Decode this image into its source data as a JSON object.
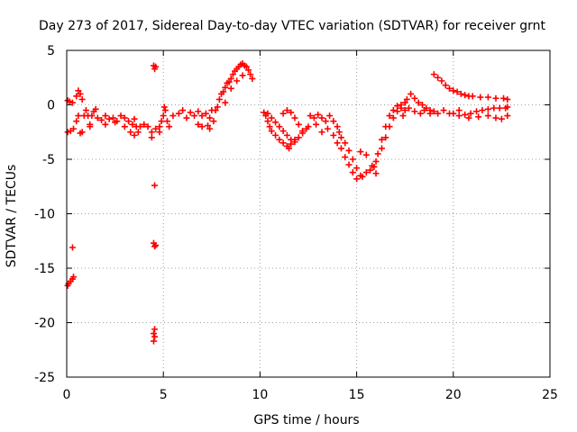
{
  "chart_data": {
    "type": "scatter",
    "title": "Day 273 of 2017, Sidereal Day-to-day VTEC variation (SDTVAR) for receiver grnt",
    "xlabel": "GPS time / hours",
    "ylabel": "SDTVAR / TECUs",
    "xlim": [
      0,
      25
    ],
    "ylim": [
      -25,
      5
    ],
    "xticks": [
      0,
      5,
      10,
      15,
      20,
      25
    ],
    "yticks": [
      5,
      0,
      -5,
      -10,
      -15,
      -20,
      -25
    ],
    "grid": true,
    "marker": "+",
    "series": [
      {
        "name": "SDTVAR",
        "color": "#ff0000",
        "points": [
          [
            0.05,
            -16.6
          ],
          [
            0.1,
            -16.4
          ],
          [
            0.2,
            -16.2
          ],
          [
            0.3,
            -16.0
          ],
          [
            0.35,
            -15.8
          ],
          [
            0.3,
            -13.1
          ],
          [
            0.05,
            0.4
          ],
          [
            0.15,
            0.3
          ],
          [
            0.3,
            0.2
          ],
          [
            0.05,
            -2.5
          ],
          [
            0.2,
            -2.4
          ],
          [
            0.35,
            -2.2
          ],
          [
            0.5,
            0.8
          ],
          [
            0.6,
            1.3
          ],
          [
            0.7,
            1.0
          ],
          [
            0.8,
            0.5
          ],
          [
            0.5,
            -1.5
          ],
          [
            0.6,
            -1.0
          ],
          [
            0.7,
            -2.6
          ],
          [
            0.8,
            -2.5
          ],
          [
            0.9,
            -1.0
          ],
          [
            1.0,
            -0.5
          ],
          [
            1.1,
            -1.0
          ],
          [
            1.2,
            -1.8
          ],
          [
            1.3,
            -1.0
          ],
          [
            1.4,
            -0.6
          ],
          [
            1.5,
            -0.4
          ],
          [
            1.2,
            -2.0
          ],
          [
            1.6,
            -1.2
          ],
          [
            1.8,
            -1.4
          ],
          [
            2.0,
            -1.0
          ],
          [
            2.2,
            -1.3
          ],
          [
            2.4,
            -1.2
          ],
          [
            2.6,
            -1.5
          ],
          [
            2.8,
            -1.0
          ],
          [
            3.0,
            -1.2
          ],
          [
            2.0,
            -1.8
          ],
          [
            2.5,
            -1.6
          ],
          [
            3.0,
            -2.0
          ],
          [
            3.2,
            -1.5
          ],
          [
            3.4,
            -1.8
          ],
          [
            3.5,
            -1.3
          ],
          [
            3.6,
            -2.0
          ],
          [
            3.8,
            -2.0
          ],
          [
            3.3,
            -2.5
          ],
          [
            3.5,
            -2.8
          ],
          [
            3.7,
            -2.5
          ],
          [
            4.0,
            -1.8
          ],
          [
            4.2,
            -2.0
          ],
          [
            4.4,
            -2.5
          ],
          [
            4.6,
            -2.2
          ],
          [
            4.4,
            -3.0
          ],
          [
            4.5,
            3.6
          ],
          [
            4.55,
            3.3
          ],
          [
            4.6,
            3.5
          ],
          [
            4.55,
            -7.4
          ],
          [
            4.5,
            -12.7
          ],
          [
            4.55,
            -13.0
          ],
          [
            4.6,
            -12.9
          ],
          [
            4.55,
            -20.6
          ],
          [
            4.5,
            -21.0
          ],
          [
            4.55,
            -21.3
          ],
          [
            4.5,
            -21.7
          ],
          [
            4.8,
            -2.0
          ],
          [
            4.9,
            -1.5
          ],
          [
            5.0,
            -1.0
          ],
          [
            5.1,
            -0.5
          ],
          [
            5.2,
            -1.5
          ],
          [
            5.3,
            -2.0
          ],
          [
            4.8,
            -2.5
          ],
          [
            5.05,
            -0.2
          ],
          [
            5.5,
            -1.0
          ],
          [
            5.8,
            -0.8
          ],
          [
            6.0,
            -0.5
          ],
          [
            6.2,
            -1.2
          ],
          [
            6.4,
            -0.7
          ],
          [
            6.6,
            -1.0
          ],
          [
            6.8,
            -0.6
          ],
          [
            7.0,
            -1.0
          ],
          [
            6.8,
            -1.8
          ],
          [
            7.0,
            -2.0
          ],
          [
            7.2,
            -0.8
          ],
          [
            7.4,
            -1.2
          ],
          [
            7.5,
            -0.5
          ],
          [
            7.6,
            -1.5
          ],
          [
            7.4,
            -2.2
          ],
          [
            7.3,
            -1.9
          ],
          [
            7.7,
            -0.5
          ],
          [
            7.8,
            -0.2
          ],
          [
            7.9,
            0.5
          ],
          [
            8.0,
            1.0
          ],
          [
            8.1,
            1.2
          ],
          [
            8.2,
            1.6
          ],
          [
            8.3,
            2.0
          ],
          [
            8.4,
            2.1
          ],
          [
            8.5,
            2.4
          ],
          [
            8.6,
            2.8
          ],
          [
            8.7,
            3.1
          ],
          [
            8.8,
            3.3
          ],
          [
            8.9,
            3.5
          ],
          [
            9.0,
            3.7
          ],
          [
            9.1,
            3.8
          ],
          [
            9.2,
            3.6
          ],
          [
            9.3,
            3.5
          ],
          [
            9.4,
            3.2
          ],
          [
            9.5,
            2.8
          ],
          [
            9.6,
            2.4
          ],
          [
            8.2,
            0.2
          ],
          [
            8.5,
            1.5
          ],
          [
            8.8,
            2.2
          ],
          [
            9.1,
            2.7
          ],
          [
            10.2,
            -0.7
          ],
          [
            10.3,
            -1.0
          ],
          [
            10.4,
            -1.5
          ],
          [
            10.5,
            -2.0
          ],
          [
            10.6,
            -2.4
          ],
          [
            10.8,
            -2.8
          ],
          [
            11.0,
            -3.2
          ],
          [
            11.2,
            -3.5
          ],
          [
            11.4,
            -3.8
          ],
          [
            11.5,
            -4.0
          ],
          [
            11.6,
            -3.6
          ],
          [
            11.8,
            -3.2
          ],
          [
            12.0,
            -3.0
          ],
          [
            12.2,
            -2.6
          ],
          [
            12.4,
            -2.2
          ],
          [
            12.5,
            -2.0
          ],
          [
            10.4,
            -0.8
          ],
          [
            10.6,
            -1.2
          ],
          [
            10.8,
            -1.6
          ],
          [
            11.0,
            -2.0
          ],
          [
            11.2,
            -2.4
          ],
          [
            11.4,
            -2.8
          ],
          [
            11.6,
            -3.2
          ],
          [
            11.8,
            -3.4
          ],
          [
            11.2,
            -0.8
          ],
          [
            11.4,
            -0.5
          ],
          [
            11.6,
            -0.7
          ],
          [
            11.8,
            -1.2
          ],
          [
            12.0,
            -1.8
          ],
          [
            12.2,
            -2.4
          ],
          [
            12.6,
            -1.0
          ],
          [
            12.8,
            -1.2
          ],
          [
            12.9,
            -1.8
          ],
          [
            13.0,
            -0.9
          ],
          [
            13.2,
            -1.2
          ],
          [
            13.4,
            -1.5
          ],
          [
            13.6,
            -1.0
          ],
          [
            13.8,
            -1.5
          ],
          [
            14.0,
            -2.0
          ],
          [
            14.1,
            -2.5
          ],
          [
            13.2,
            -2.5
          ],
          [
            13.5,
            -2.2
          ],
          [
            13.8,
            -2.8
          ],
          [
            14.0,
            -3.5
          ],
          [
            14.2,
            -4.0
          ],
          [
            14.4,
            -4.8
          ],
          [
            14.6,
            -5.5
          ],
          [
            14.8,
            -6.2
          ],
          [
            14.2,
            -3.0
          ],
          [
            14.4,
            -3.5
          ],
          [
            14.6,
            -4.2
          ],
          [
            14.8,
            -5.0
          ],
          [
            15.0,
            -5.8
          ],
          [
            15.2,
            -6.5
          ],
          [
            15.0,
            -6.8
          ],
          [
            15.3,
            -6.6
          ],
          [
            15.5,
            -6.2
          ],
          [
            15.7,
            -6.0
          ],
          [
            15.9,
            -5.7
          ],
          [
            16.0,
            -5.2
          ],
          [
            15.2,
            -4.3
          ],
          [
            15.5,
            -4.6
          ],
          [
            15.8,
            -5.6
          ],
          [
            16.0,
            -6.3
          ],
          [
            16.1,
            -4.5
          ],
          [
            16.3,
            -3.2
          ],
          [
            16.5,
            -2.0
          ],
          [
            16.7,
            -1.0
          ],
          [
            16.9,
            -0.5
          ],
          [
            17.1,
            -0.1
          ],
          [
            17.3,
            0.0
          ],
          [
            17.5,
            0.2
          ],
          [
            16.3,
            -4.0
          ],
          [
            16.5,
            -3.0
          ],
          [
            16.7,
            -2.0
          ],
          [
            16.9,
            -1.2
          ],
          [
            17.1,
            -0.6
          ],
          [
            17.3,
            -0.3
          ],
          [
            17.5,
            -0.5
          ],
          [
            17.4,
            -1.0
          ],
          [
            17.6,
            0.5
          ],
          [
            17.8,
            1.0
          ],
          [
            18.0,
            0.6
          ],
          [
            18.2,
            0.2
          ],
          [
            18.4,
            0.0
          ],
          [
            18.6,
            -0.3
          ],
          [
            18.8,
            -0.5
          ],
          [
            19.0,
            -0.6
          ],
          [
            17.7,
            -0.3
          ],
          [
            18.0,
            -0.6
          ],
          [
            18.3,
            -0.8
          ],
          [
            18.5,
            -0.5
          ],
          [
            18.8,
            -0.8
          ],
          [
            19.2,
            -0.8
          ],
          [
            19.5,
            -0.5
          ],
          [
            19.8,
            -0.8
          ],
          [
            19.0,
            2.8
          ],
          [
            19.2,
            2.5
          ],
          [
            19.4,
            2.2
          ],
          [
            19.6,
            1.8
          ],
          [
            19.8,
            1.5
          ],
          [
            20.0,
            1.3
          ],
          [
            20.2,
            1.2
          ],
          [
            20.4,
            1.0
          ],
          [
            20.6,
            0.9
          ],
          [
            20.8,
            0.8
          ],
          [
            21.0,
            0.8
          ],
          [
            21.4,
            0.7
          ],
          [
            21.8,
            0.7
          ],
          [
            22.2,
            0.6
          ],
          [
            22.6,
            0.6
          ],
          [
            22.8,
            0.5
          ],
          [
            20.0,
            -0.8
          ],
          [
            20.3,
            -1.0
          ],
          [
            20.6,
            -0.9
          ],
          [
            20.9,
            -0.8
          ],
          [
            21.2,
            -0.6
          ],
          [
            21.5,
            -0.5
          ],
          [
            21.8,
            -0.4
          ],
          [
            22.1,
            -0.3
          ],
          [
            22.4,
            -0.3
          ],
          [
            22.7,
            -0.3
          ],
          [
            22.8,
            -0.2
          ],
          [
            20.3,
            -0.5
          ],
          [
            20.8,
            -1.2
          ],
          [
            21.3,
            -1.1
          ],
          [
            21.8,
            -1.0
          ],
          [
            22.2,
            -1.2
          ],
          [
            22.5,
            -1.3
          ],
          [
            22.8,
            -1.0
          ]
        ]
      }
    ]
  }
}
